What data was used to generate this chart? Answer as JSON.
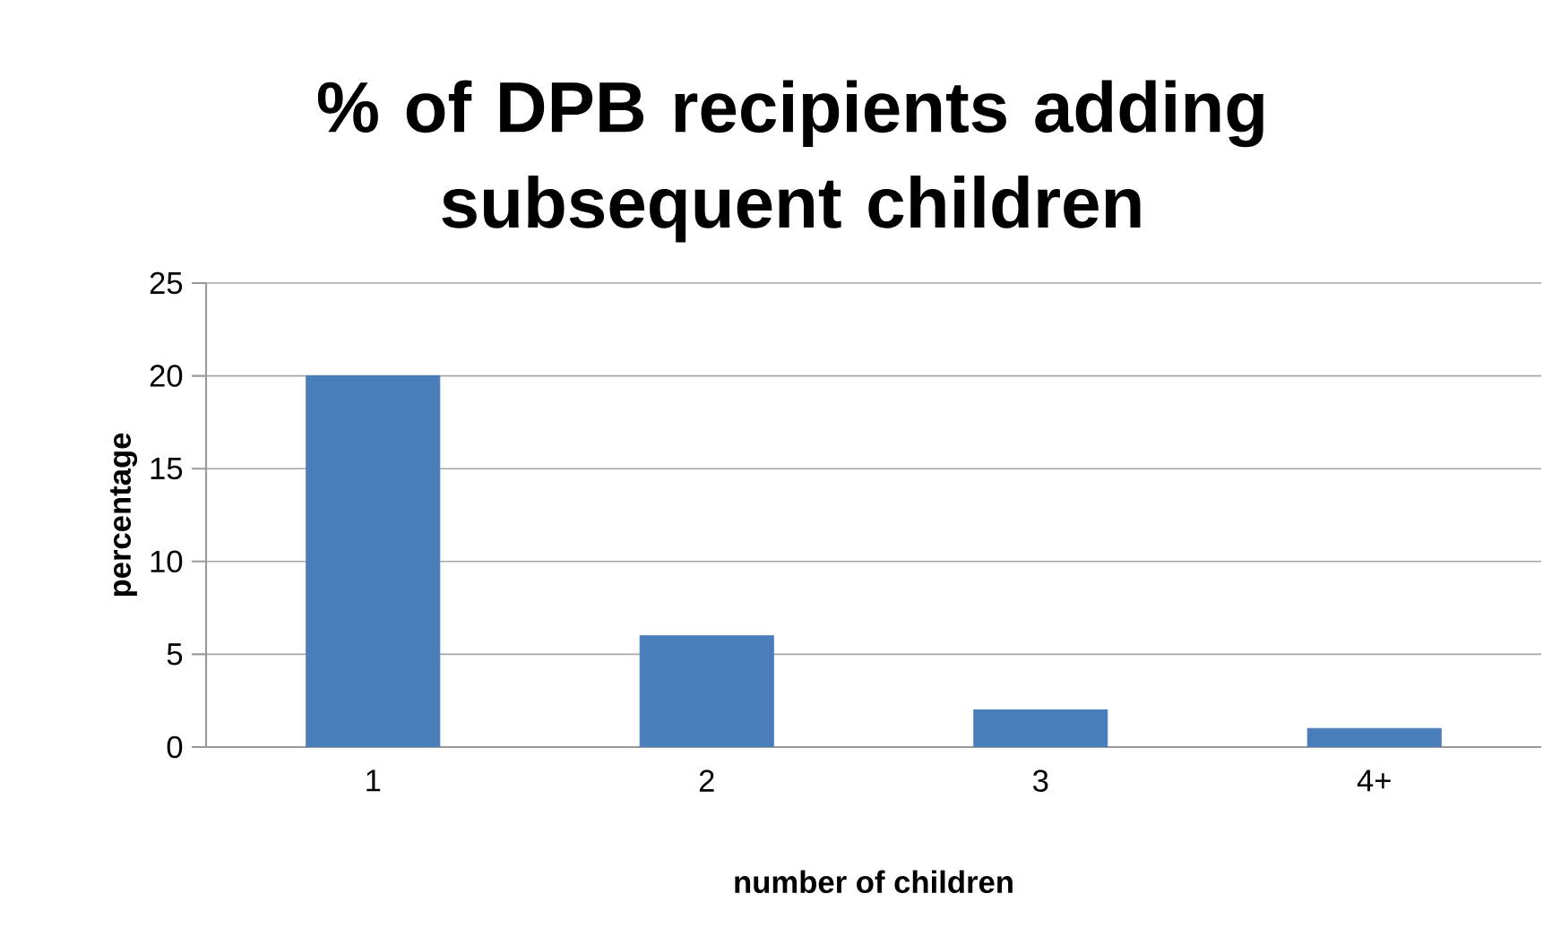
{
  "chart_data": {
    "type": "bar",
    "title": "% of DPB recipients adding subsequent children",
    "xlabel": "number of children",
    "ylabel": "percentage",
    "categories": [
      "1",
      "2",
      "3",
      "4+"
    ],
    "values": [
      20,
      6,
      2,
      1
    ],
    "color": "#4a7ebb",
    "ylim": [
      0,
      25
    ],
    "yticks": [
      0,
      5,
      10,
      15,
      20,
      25
    ],
    "grid": "y"
  }
}
